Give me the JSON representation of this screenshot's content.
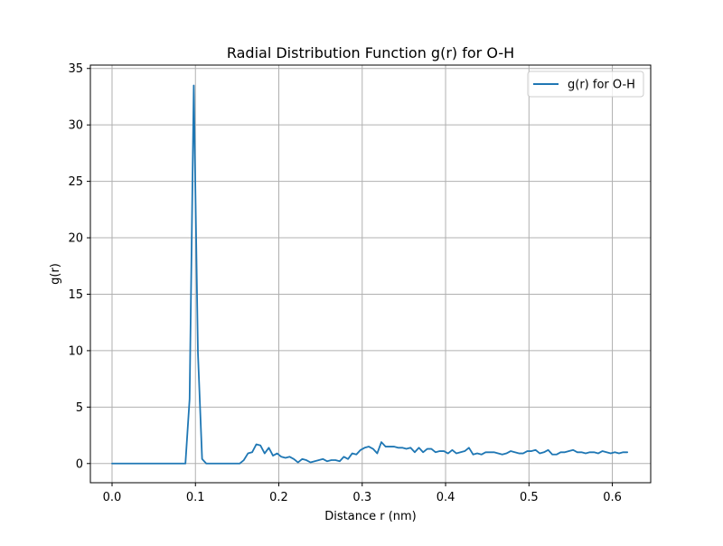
{
  "chart_data": {
    "type": "line",
    "title": "Radial Distribution Function g(r) for O-H",
    "xlabel": "Distance r (nm)",
    "ylabel": "g(r)",
    "xlim": [
      -0.026,
      0.646
    ],
    "ylim": [
      -1.7,
      35.3
    ],
    "xticks": [
      0.0,
      0.1,
      0.2,
      0.3,
      0.4,
      0.5,
      0.6
    ],
    "xtick_labels": [
      "0.0",
      "0.1",
      "0.2",
      "0.3",
      "0.4",
      "0.5",
      "0.6"
    ],
    "yticks": [
      0,
      5,
      10,
      15,
      20,
      25,
      30,
      35
    ],
    "ytick_labels": [
      "0",
      "5",
      "10",
      "15",
      "20",
      "25",
      "30",
      "35"
    ],
    "grid": true,
    "legend_position": "upper right",
    "series": [
      {
        "name": "g(r) for O-H",
        "color": "#1f77b4",
        "x": [
          0.0,
          0.01,
          0.02,
          0.03,
          0.04,
          0.05,
          0.06,
          0.07,
          0.08,
          0.088,
          0.093,
          0.098,
          0.103,
          0.108,
          0.113,
          0.12,
          0.13,
          0.14,
          0.153,
          0.158,
          0.163,
          0.168,
          0.173,
          0.178,
          0.183,
          0.188,
          0.193,
          0.198,
          0.203,
          0.208,
          0.213,
          0.218,
          0.223,
          0.228,
          0.233,
          0.238,
          0.243,
          0.248,
          0.253,
          0.258,
          0.263,
          0.268,
          0.273,
          0.278,
          0.283,
          0.288,
          0.293,
          0.298,
          0.303,
          0.308,
          0.313,
          0.318,
          0.323,
          0.328,
          0.333,
          0.338,
          0.343,
          0.348,
          0.353,
          0.358,
          0.363,
          0.368,
          0.373,
          0.378,
          0.383,
          0.388,
          0.393,
          0.398,
          0.403,
          0.408,
          0.413,
          0.418,
          0.423,
          0.428,
          0.433,
          0.438,
          0.443,
          0.448,
          0.453,
          0.458,
          0.463,
          0.468,
          0.473,
          0.478,
          0.483,
          0.488,
          0.493,
          0.498,
          0.503,
          0.508,
          0.513,
          0.518,
          0.523,
          0.528,
          0.533,
          0.538,
          0.543,
          0.548,
          0.553,
          0.558,
          0.563,
          0.568,
          0.573,
          0.578,
          0.583,
          0.588,
          0.593,
          0.598,
          0.603,
          0.608,
          0.613,
          0.618
        ],
        "values": [
          0,
          0,
          0,
          0,
          0,
          0,
          0,
          0,
          0,
          0,
          5.7,
          33.5,
          9.8,
          0.4,
          0.0,
          0,
          0,
          0,
          0,
          0.3,
          0.9,
          1.0,
          1.7,
          1.6,
          0.9,
          1.4,
          0.7,
          0.9,
          0.6,
          0.5,
          0.6,
          0.4,
          0.1,
          0.4,
          0.3,
          0.1,
          0.2,
          0.3,
          0.4,
          0.2,
          0.3,
          0.3,
          0.2,
          0.6,
          0.4,
          0.9,
          0.8,
          1.2,
          1.4,
          1.5,
          1.3,
          0.9,
          1.9,
          1.5,
          1.5,
          1.5,
          1.4,
          1.4,
          1.3,
          1.4,
          1.0,
          1.4,
          1.0,
          1.3,
          1.3,
          1.0,
          1.1,
          1.1,
          0.9,
          1.2,
          0.9,
          1.0,
          1.1,
          1.4,
          0.8,
          0.9,
          0.8,
          1.0,
          1.0,
          1.0,
          0.9,
          0.8,
          0.9,
          1.1,
          1.0,
          0.9,
          0.9,
          1.1,
          1.1,
          1.2,
          0.9,
          1.0,
          1.2,
          0.8,
          0.8,
          1.0,
          1.0,
          1.1,
          1.2,
          1.0,
          1.0,
          0.9,
          1.0,
          1.0,
          0.9,
          1.1,
          1.0,
          0.9,
          1.0,
          0.9,
          1.0,
          1.0
        ]
      }
    ]
  }
}
